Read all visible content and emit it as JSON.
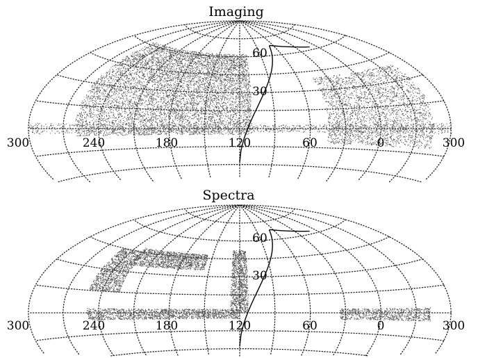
{
  "panels": [
    {
      "title": "Imaging",
      "ra_labels": [
        "300",
        "240",
        "180",
        "120",
        "60",
        "0",
        "300"
      ],
      "dec_labels": [
        "60",
        "30"
      ],
      "coverage": [
        {
          "region": "northern-cap",
          "ra_range": [
            110,
            260
          ],
          "dec_range": [
            -5,
            62
          ],
          "density": 0.85
        },
        {
          "region": "southern-cap",
          "ra_range": [
            -45,
            45
          ],
          "dec_range": [
            -12,
            40
          ],
          "density": 0.7
        },
        {
          "region": "equatorial-stripe",
          "ra_range": [
            -60,
            300
          ],
          "dec_range": [
            -3,
            3
          ],
          "density": 0.6
        }
      ]
    },
    {
      "title": "Spectra",
      "ra_labels": [
        "300",
        "240",
        "180",
        "120",
        "60",
        "0",
        "300"
      ],
      "dec_labels": [
        "60",
        "30"
      ],
      "coverage": [
        {
          "region": "upper-band",
          "ra_range": [
            155,
            230
          ],
          "dec_range": [
            35,
            48
          ],
          "density": 0.8
        },
        {
          "region": "left-block",
          "ra_range": [
            225,
            252
          ],
          "dec_range": [
            15,
            45
          ],
          "density": 0.8
        },
        {
          "region": "vertical-strip",
          "ra_range": [
            113,
            128
          ],
          "dec_range": [
            0,
            52
          ],
          "density": 0.8
        },
        {
          "region": "bottom-band",
          "ra_range": [
            120,
            250
          ],
          "dec_range": [
            -5,
            3
          ],
          "density": 0.85
        },
        {
          "region": "south-stripe",
          "ra_range": [
            -42,
            35
          ],
          "dec_range": [
            -5,
            3
          ],
          "density": 0.75
        }
      ]
    }
  ]
}
